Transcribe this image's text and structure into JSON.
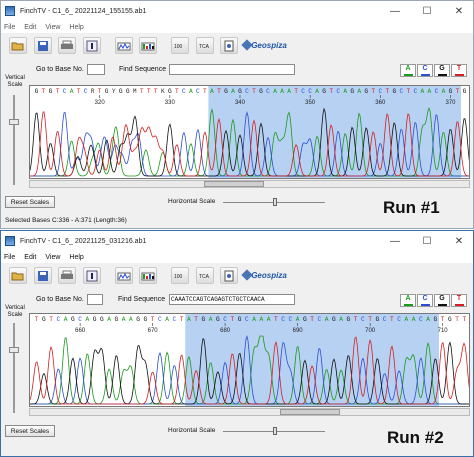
{
  "windows": [
    {
      "id": "w1",
      "title": "FinchTV - C1_6_          20221124_155155.ab1",
      "menu": [
        "File",
        "Edit",
        "View",
        "Help"
      ],
      "go_to_base_label": "Go to Base No.",
      "go_to_base_value": "",
      "find_sequence_label": "Find Sequence",
      "find_sequence_value": "",
      "vertical_scale_label": "Vertical Scale",
      "bases": "GTGTCATCRTGYGGMTTTKGTCACTATGAGCTGCAAATCCAGTCAGAGTCTGCTCAACAGTG",
      "base_numbers": [
        "320",
        "330",
        "340",
        "350",
        "360",
        "370"
      ],
      "reset_label": "Reset Scales",
      "horizontal_scale_label": "Horizontal Scale",
      "status": "Selected Bases C:336 - A:371  (Length:36)",
      "run_label": "Run #1",
      "selection": {
        "start_base": 336,
        "end_base": 371
      },
      "scroll_position": 0.46
    },
    {
      "id": "w2",
      "title": "FinchTV - C1_6_          20221125_031216.ab1",
      "menu": [
        "File",
        "Edit",
        "View",
        "Help"
      ],
      "go_to_base_label": "Go to Base No.",
      "go_to_base_value": "",
      "find_sequence_label": "Find Sequence",
      "find_sequence_value": "CAAATCCAGTCAGAGTCTGCTCAACA",
      "vertical_scale_label": "Vertical Scale",
      "bases": "TGTCAGCAGGAGAAGGTCACTATGAGCTGCAAATCCAGTCAGAGTCTGCTCAACAGTGTT",
      "base_numbers": [
        "660",
        "670",
        "680",
        "690",
        "700",
        "710"
      ],
      "reset_label": "Reset Scales",
      "horizontal_scale_label": "Horizontal Scale",
      "status": "",
      "run_label": "Run #2",
      "selection": {
        "start_base": 675,
        "end_base": 709
      },
      "scroll_position": 0.66
    }
  ],
  "window_controls": {
    "minimize": "—",
    "maximize": "☐",
    "close": "✕"
  },
  "toolbar_icons": [
    "open-folder-icon",
    "save-disk-icon",
    "print-icon",
    "info-icon",
    "view-trace-icon",
    "view-bars-icon",
    "quality-icon",
    "tca-icon",
    "edit-icon",
    "export-icon"
  ],
  "toolbar_texts": {
    "quality": "100",
    "tca": "TCA"
  },
  "logo_text": "Geospiza",
  "base_filters": [
    {
      "letter": "A",
      "color": "#1a9a1a"
    },
    {
      "letter": "C",
      "color": "#2b4fd6"
    },
    {
      "letter": "G",
      "color": "#111111"
    },
    {
      "letter": "T",
      "color": "#d42020"
    }
  ],
  "base_colors": {
    "A": "#1a9a1a",
    "C": "#2b4fd6",
    "G": "#111111",
    "T": "#d42020"
  },
  "selection_color": "#b7d1f3"
}
